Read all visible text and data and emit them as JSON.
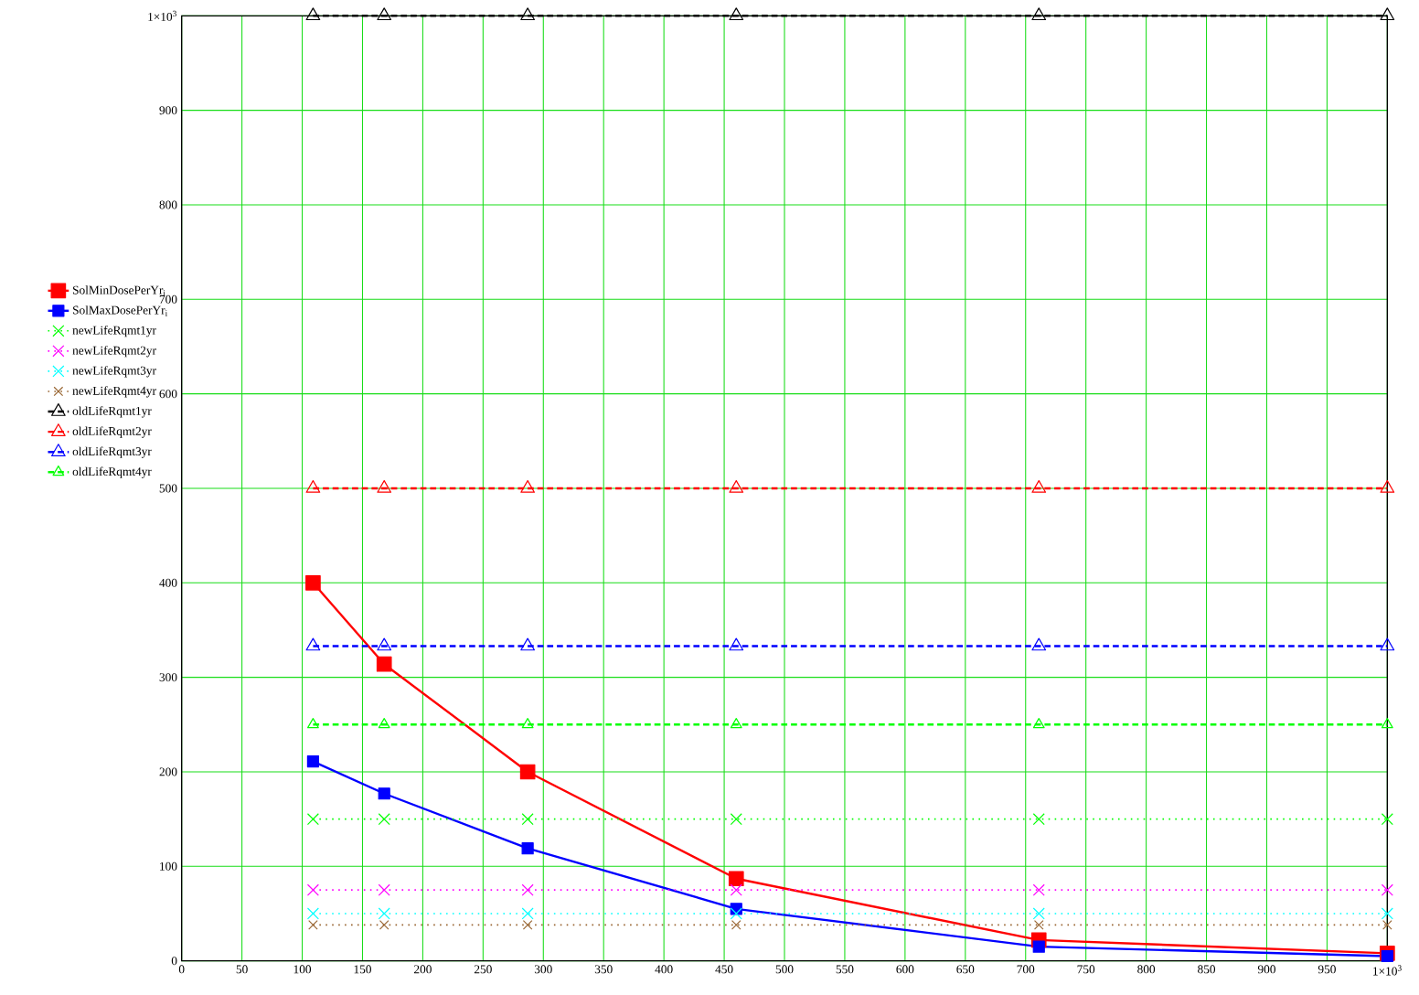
{
  "chart_data": {
    "type": "line",
    "x": [
      109,
      168,
      287,
      460,
      711,
      1000
    ],
    "series": [
      {
        "name": "SolMinDosePerYr$_{i}$",
        "color": "#ff0000",
        "marker": "square",
        "line_style": "solid",
        "values": [
          400,
          314,
          200,
          87,
          22,
          8
        ]
      },
      {
        "name": "SolMaxDosePerYr$_{i}$",
        "color": "#0000ff",
        "marker": "square",
        "line_style": "solid",
        "values": [
          211,
          177,
          119,
          55,
          15,
          5
        ]
      },
      {
        "name": "newLifeRqmt1yr",
        "color": "#00ff00",
        "marker": "cross",
        "line_style": "dotted",
        "values": [
          150,
          150,
          150,
          150,
          150,
          150
        ]
      },
      {
        "name": "newLifeRqmt2yr",
        "color": "#ff00ff",
        "marker": "cross",
        "line_style": "dotted",
        "values": [
          75,
          75,
          75,
          75,
          75,
          75
        ]
      },
      {
        "name": "newLifeRqmt3yr",
        "color": "#00ffff",
        "marker": "cross",
        "line_style": "dotted",
        "values": [
          50,
          50,
          50,
          50,
          50,
          50
        ]
      },
      {
        "name": "newLifeRqmt4yr",
        "color": "#996633",
        "marker": "cross",
        "line_style": "dotted",
        "values": [
          38,
          38,
          38,
          38,
          38,
          38
        ]
      },
      {
        "name": "oldLifeRqmt1yr",
        "color": "#000000",
        "marker": "triangle",
        "line_style": "dashed",
        "values": [
          1000,
          1000,
          1000,
          1000,
          1000,
          1000
        ]
      },
      {
        "name": "oldLifeRqmt2yr",
        "color": "#ff0000",
        "marker": "triangle",
        "line_style": "dashed",
        "values": [
          500,
          500,
          500,
          500,
          500,
          500
        ]
      },
      {
        "name": "oldLifeRqmt3yr",
        "color": "#0000ff",
        "marker": "triangle",
        "line_style": "dashed",
        "values": [
          333,
          333,
          333,
          333,
          333,
          333
        ]
      },
      {
        "name": "oldLifeRqmt4yr",
        "color": "#00ff00",
        "marker": "triangle",
        "line_style": "dashed",
        "values": [
          250,
          250,
          250,
          250,
          250,
          250
        ]
      }
    ],
    "xlim": [
      0,
      1000
    ],
    "xticks": [
      0,
      50,
      100,
      150,
      200,
      250,
      300,
      350,
      400,
      450,
      500,
      550,
      600,
      650,
      700,
      750,
      800,
      850,
      900,
      950,
      {
        "value": 1000,
        "label": "1×10$^{3}$"
      }
    ],
    "ylim": [
      0,
      1000
    ],
    "yticks": [
      0,
      100,
      200,
      300,
      400,
      500,
      600,
      700,
      800,
      900,
      {
        "value": 1000,
        "label": "1×10$^{3}$"
      }
    ],
    "grid": true,
    "legend": "left"
  }
}
